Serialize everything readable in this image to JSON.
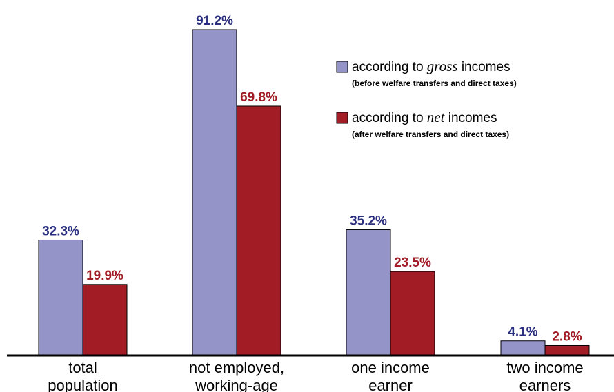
{
  "chart_data": {
    "type": "bar",
    "categories": [
      [
        "total",
        "population"
      ],
      [
        "not employed,",
        "working-age"
      ],
      [
        "one income",
        "earner"
      ],
      [
        "two income",
        "earners"
      ]
    ],
    "series": [
      {
        "name_parts": [
          "according to ",
          "gross",
          " incomes"
        ],
        "note": "(before welfare transfers and direct taxes)",
        "color": "#9494c8",
        "label_color": "#2b2f7f",
        "values": [
          32.3,
          91.2,
          35.2,
          4.1
        ],
        "labels": [
          "32.3%",
          "91.2%",
          "35.2%",
          "4.1%"
        ]
      },
      {
        "name_parts": [
          "according to ",
          "net",
          " incomes"
        ],
        "note": "(after welfare transfers and direct taxes)",
        "color": "#a21c26",
        "label_color": "#a21c26",
        "values": [
          19.9,
          69.8,
          23.5,
          2.8
        ],
        "labels": [
          "19.9%",
          "69.8%",
          "23.5%",
          "2.8%"
        ]
      }
    ],
    "unit": "%",
    "ylim": [
      0,
      97
    ],
    "grid": false,
    "legend_position": "top-right"
  }
}
